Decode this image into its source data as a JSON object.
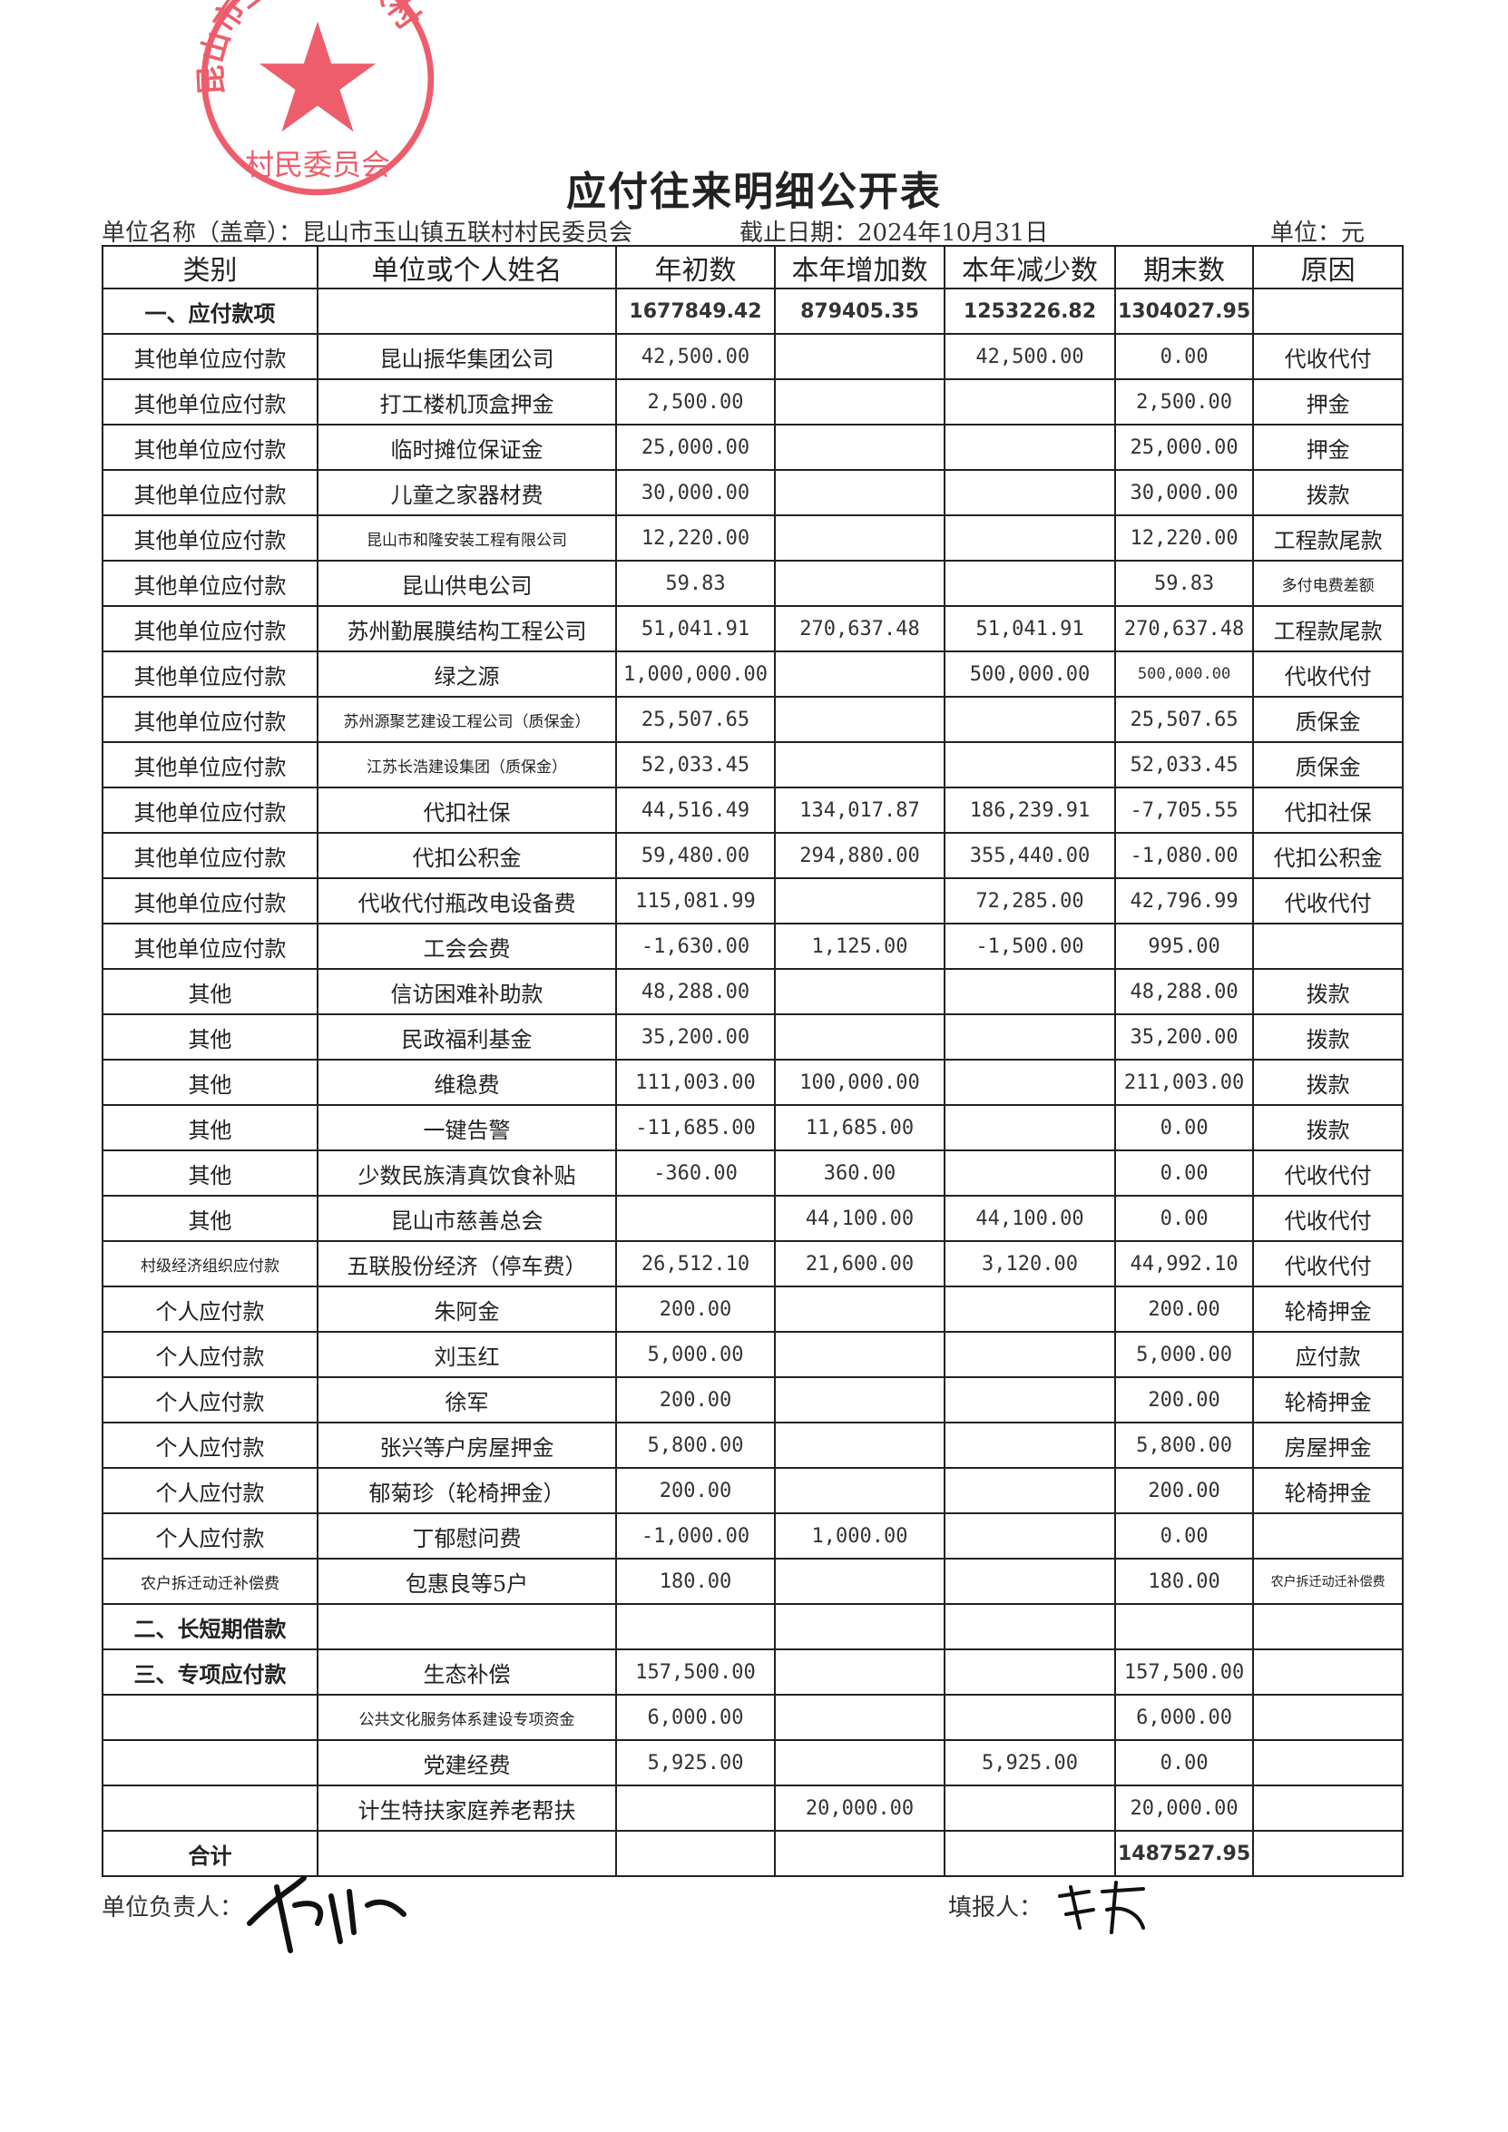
{
  "title": "应付往来明细公开表",
  "unit_name_label": "单位名称（盖章）：昆山市玉山镇五联村村民委员会",
  "deadline": "截止日期：2024年10月31日",
  "unit": "单位：元",
  "stamp_text": "昆山市玉山镇五联村村民委员会",
  "headers": [
    "类别",
    "单位或个人姓名",
    "年初数",
    "本年增加数",
    "本年减少数",
    "期末数",
    "原因"
  ],
  "rows": [
    [
      "一、应付款项",
      "",
      "1677849.42",
      "879405.35",
      "1253226.82",
      "1304027.95",
      ""
    ],
    [
      "其他单位应付款",
      "昆山振华集团公司",
      "42,500.00",
      "",
      "42,500.00",
      "0.00",
      "代收代付"
    ],
    [
      "其他单位应付款",
      "打工楼机顶盒押金",
      "2,500.00",
      "",
      "",
      "2,500.00",
      "押金"
    ],
    [
      "其他单位应付款",
      "临时摊位保证金",
      "25,000.00",
      "",
      "",
      "25,000.00",
      "押金"
    ],
    [
      "其他单位应付款",
      "儿童之家器材费",
      "30,000.00",
      "",
      "",
      "30,000.00",
      "拨款"
    ],
    [
      "其他单位应付款",
      "昆山市和隆安装工程有限公司",
      "12,220.00",
      "",
      "",
      "12,220.00",
      "工程款尾款"
    ],
    [
      "其他单位应付款",
      "昆山供电公司",
      "59.83",
      "",
      "",
      "59.83",
      "多付电费差额"
    ],
    [
      "其他单位应付款",
      "苏州勤展膜结构工程公司",
      "51,041.91",
      "270,637.48",
      "51,041.91",
      "270,637.48",
      "工程款尾款"
    ],
    [
      "其他单位应付款",
      "绿之源",
      "1,000,000.00",
      "",
      "500,000.00",
      "500,000.00",
      "代收代付"
    ],
    [
      "其他单位应付款",
      "苏州源聚艺建设工程公司（质保金）",
      "25,507.65",
      "",
      "",
      "25,507.65",
      "质保金"
    ],
    [
      "其他单位应付款",
      "江苏长浩建设集团（质保金）",
      "52,033.45",
      "",
      "",
      "52,033.45",
      "质保金"
    ],
    [
      "其他单位应付款",
      "代扣社保",
      "44,516.49",
      "134,017.87",
      "186,239.91",
      "-7,705.55",
      "代扣社保"
    ],
    [
      "其他单位应付款",
      "代扣公积金",
      "59,480.00",
      "294,880.00",
      "355,440.00",
      "-1,080.00",
      "代扣公积金"
    ],
    [
      "其他单位应付款",
      "代收代付瓶改电设备费",
      "115,081.99",
      "",
      "72,285.00",
      "42,796.99",
      "代收代付"
    ],
    [
      "其他单位应付款",
      "工会会费",
      "-1,630.00",
      "1,125.00",
      "-1,500.00",
      "995.00",
      ""
    ],
    [
      "其他",
      "信访困难补助款",
      "48,288.00",
      "",
      "",
      "48,288.00",
      "拨款"
    ],
    [
      "其他",
      "民政福利基金",
      "35,200.00",
      "",
      "",
      "35,200.00",
      "拨款"
    ],
    [
      "其他",
      "维稳费",
      "111,003.00",
      "100,000.00",
      "",
      "211,003.00",
      "拨款"
    ],
    [
      "其他",
      "一键告警",
      "-11,685.00",
      "11,685.00",
      "",
      "0.00",
      "拨款"
    ],
    [
      "其他",
      "少数民族清真饮食补贴",
      "-360.00",
      "360.00",
      "",
      "0.00",
      "代收代付"
    ],
    [
      "其他",
      "昆山市慈善总会",
      "",
      "44,100.00",
      "44,100.00",
      "0.00",
      "代收代付"
    ],
    [
      "村级经济组织应付款",
      "五联股份经济（停车费）",
      "26,512.10",
      "21,600.00",
      "3,120.00",
      "44,992.10",
      "代收代付"
    ],
    [
      "个人应付款",
      "朱阿金",
      "200.00",
      "",
      "",
      "200.00",
      "轮椅押金"
    ],
    [
      "个人应付款",
      "刘玉红",
      "5,000.00",
      "",
      "",
      "5,000.00",
      "应付款"
    ],
    [
      "个人应付款",
      "徐军",
      "200.00",
      "",
      "",
      "200.00",
      "轮椅押金"
    ],
    [
      "个人应付款",
      "张兴等户房屋押金",
      "5,800.00",
      "",
      "",
      "5,800.00",
      "房屋押金"
    ],
    [
      "个人应付款",
      "郁菊珍（轮椅押金）",
      "200.00",
      "",
      "",
      "200.00",
      "轮椅押金"
    ],
    [
      "个人应付款",
      "丁郁慰问费",
      "-1,000.00",
      "1,000.00",
      "",
      "0.00",
      ""
    ],
    [
      "农户拆迁动迁补偿费",
      "包惠良等5户",
      "180.00",
      "",
      "",
      "180.00",
      "农户拆迁动迁补偿费"
    ],
    [
      "二、长短期借款",
      "",
      "",
      "",
      "",
      "",
      ""
    ],
    [
      "三、专项应付款",
      "生态补偿",
      "157,500.00",
      "",
      "",
      "157,500.00",
      ""
    ],
    [
      "",
      "公共文化服务体系建设专项资金",
      "6,000.00",
      "",
      "",
      "6,000.00",
      ""
    ],
    [
      "",
      "党建经费",
      "5,925.00",
      "",
      "5,925.00",
      "0.00",
      ""
    ],
    [
      "",
      "计生特扶家庭养老帮扶",
      "",
      "20,000.00",
      "",
      "20,000.00",
      ""
    ],
    [
      "合计",
      "",
      "",
      "",
      "",
      "1487527.95",
      ""
    ]
  ],
  "footer": {
    "leader_label": "单位负责人：",
    "preparer_label": "填报人："
  },
  "colors": {
    "stamp": "#e8283a",
    "ink": "#222222"
  }
}
